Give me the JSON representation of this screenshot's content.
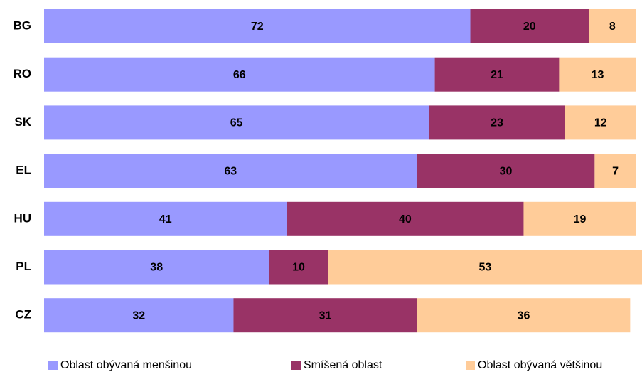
{
  "chart_data": {
    "type": "stacked-bar",
    "orientation": "horizontal",
    "categories": [
      "BG",
      "RO",
      "SK",
      "EL",
      "HU",
      "PL",
      "CZ"
    ],
    "series": [
      {
        "name": "Oblast obývaná menšinou",
        "color": "#9999ff",
        "values": [
          72,
          66,
          65,
          63,
          41,
          38,
          32
        ]
      },
      {
        "name": "Smíšená oblast",
        "color": "#993366",
        "values": [
          20,
          21,
          23,
          30,
          40,
          10,
          31
        ]
      },
      {
        "name": "Oblast obývaná většinou",
        "color": "#ffcc99",
        "values": [
          8,
          13,
          12,
          7,
          19,
          53,
          36
        ]
      }
    ],
    "legend": "bottom"
  }
}
